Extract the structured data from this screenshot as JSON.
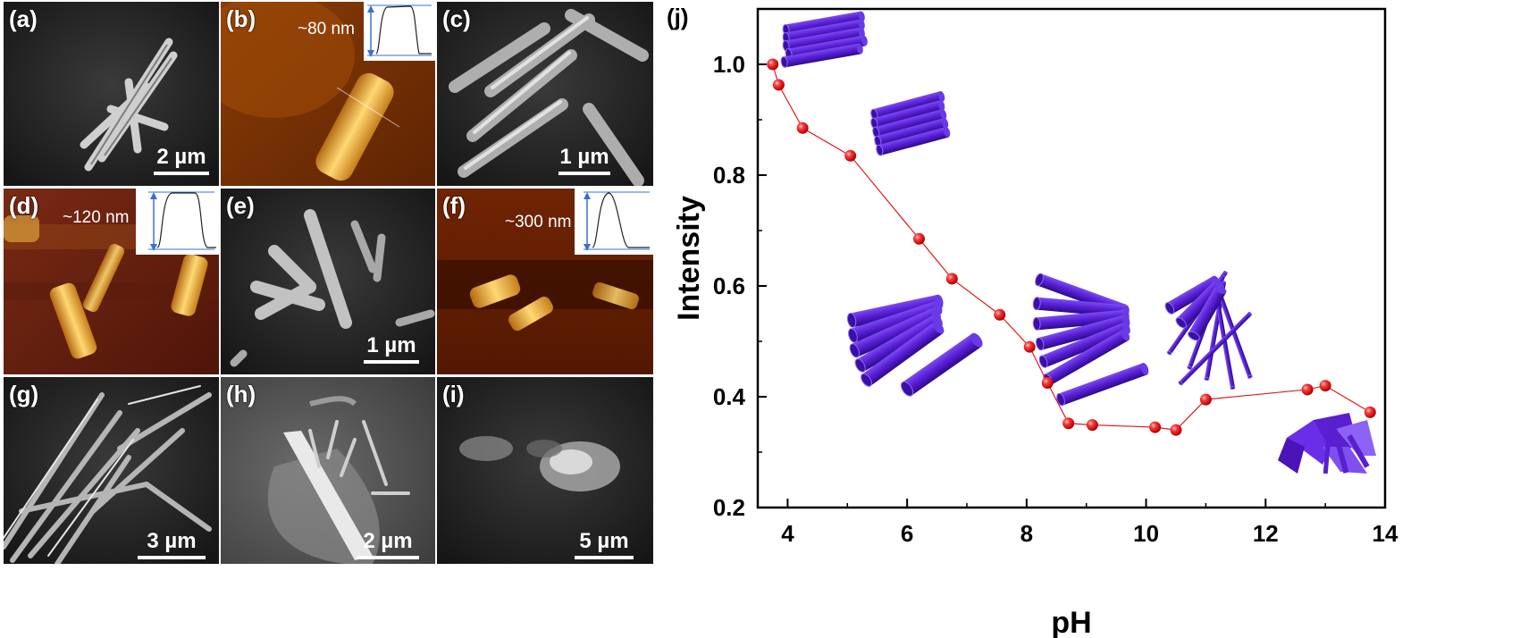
{
  "panels": {
    "a": {
      "label": "(a)",
      "scale": "2 µm"
    },
    "b": {
      "label": "(b)",
      "height": "~80 nm"
    },
    "c": {
      "label": "(c)",
      "scale": "1 µm"
    },
    "d": {
      "label": "(d)",
      "height": "~120 nm"
    },
    "e": {
      "label": "(e)",
      "scale": "1 µm"
    },
    "f": {
      "label": "(f)",
      "height": "~300 nm"
    },
    "g": {
      "label": "(g)",
      "scale": "3 µm"
    },
    "h": {
      "label": "(h)",
      "scale": "2 µm"
    },
    "i": {
      "label": "(i)",
      "scale": "5 µm"
    }
  },
  "chart_data": {
    "type": "line",
    "panel_label": "(j)",
    "xlabel": "pH",
    "ylabel": "Intensity",
    "xlim": [
      3.5,
      14
    ],
    "ylim": [
      0.2,
      1.1
    ],
    "xticks": [
      "4",
      "6",
      "8",
      "10",
      "12",
      "14"
    ],
    "yticks": [
      "0.2",
      "0.4",
      "0.6",
      "0.8",
      "1.0"
    ],
    "series": [
      {
        "color": "#e41a1c",
        "x": [
          3.75,
          3.85,
          4.25,
          5.05,
          6.2,
          6.75,
          7.55,
          8.05,
          8.35,
          8.7,
          9.1,
          10.15,
          10.5,
          11.0,
          12.7,
          13.0,
          13.75
        ],
        "y": [
          1.0,
          0.963,
          0.885,
          0.835,
          0.685,
          0.613,
          0.548,
          0.49,
          0.425,
          0.352,
          0.349,
          0.345,
          0.34,
          0.395,
          0.413,
          0.42,
          0.372
        ]
      }
    ],
    "grid": false,
    "marker_color": "#e41a1c",
    "illustration_color": "#5a1fd0"
  }
}
